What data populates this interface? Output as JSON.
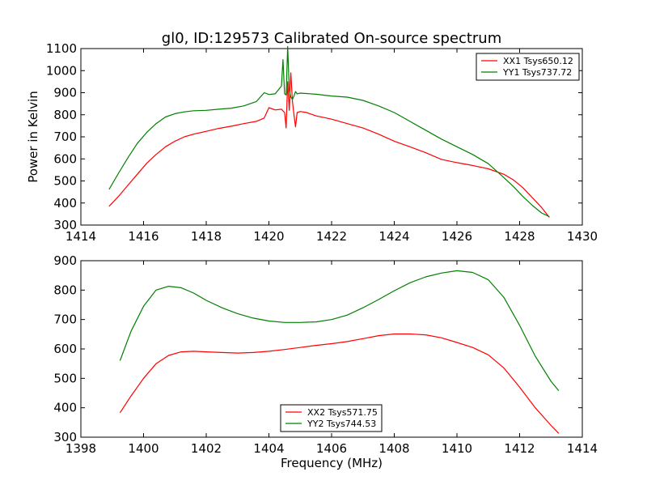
{
  "chart_data": [
    {
      "type": "line",
      "title": "gl0, ID:129573 Calibrated On-source spectrum",
      "xlabel": "",
      "ylabel": "Power in Kelvin",
      "xlim": [
        1414,
        1430
      ],
      "ylim": [
        300,
        1100
      ],
      "xticks": [
        1414,
        1416,
        1418,
        1420,
        1422,
        1424,
        1426,
        1428,
        1430
      ],
      "yticks": [
        300,
        400,
        500,
        600,
        700,
        800,
        900,
        1000,
        1100
      ],
      "grid": false,
      "legend_position": "top-right",
      "series": [
        {
          "name": "XX1 Tsys650.12",
          "color": "#ff0000",
          "x": [
            1414.9,
            1415.2,
            1415.5,
            1415.8,
            1416.1,
            1416.4,
            1416.7,
            1417.0,
            1417.3,
            1417.6,
            1418.0,
            1418.4,
            1418.8,
            1419.2,
            1419.6,
            1419.85,
            1420.0,
            1420.2,
            1420.4,
            1420.5,
            1420.55,
            1420.6,
            1420.65,
            1420.7,
            1420.75,
            1420.8,
            1420.85,
            1420.9,
            1421.0,
            1421.2,
            1421.5,
            1422.0,
            1422.5,
            1423.0,
            1423.5,
            1424.0,
            1424.5,
            1425.0,
            1425.5,
            1426.0,
            1426.5,
            1427.0,
            1427.5,
            1427.8,
            1428.1,
            1428.4,
            1428.7,
            1428.95
          ],
          "y": [
            385,
            430,
            480,
            530,
            580,
            620,
            655,
            680,
            700,
            712,
            725,
            738,
            748,
            760,
            770,
            785,
            832,
            822,
            825,
            810,
            740,
            950,
            820,
            990,
            860,
            800,
            745,
            810,
            815,
            810,
            795,
            780,
            760,
            740,
            712,
            680,
            655,
            628,
            598,
            583,
            570,
            555,
            530,
            505,
            470,
            425,
            380,
            335
          ]
        },
        {
          "name": "YY1 Tsys737.72",
          "color": "#008000",
          "x": [
            1414.9,
            1415.2,
            1415.5,
            1415.8,
            1416.1,
            1416.4,
            1416.7,
            1417.0,
            1417.3,
            1417.6,
            1418.0,
            1418.4,
            1418.8,
            1419.2,
            1419.6,
            1419.85,
            1420.0,
            1420.2,
            1420.4,
            1420.45,
            1420.5,
            1420.55,
            1420.6,
            1420.65,
            1420.7,
            1420.75,
            1420.8,
            1420.85,
            1420.9,
            1421.0,
            1421.5,
            1422.0,
            1422.5,
            1423.0,
            1423.5,
            1424.0,
            1424.5,
            1425.0,
            1425.5,
            1426.0,
            1426.5,
            1427.0,
            1427.5,
            1427.8,
            1428.1,
            1428.4,
            1428.7,
            1428.95
          ],
          "y": [
            462,
            535,
            605,
            670,
            720,
            760,
            790,
            805,
            813,
            818,
            820,
            825,
            830,
            840,
            860,
            900,
            892,
            895,
            930,
            1050,
            895,
            890,
            1110,
            910,
            880,
            870,
            885,
            905,
            895,
            898,
            893,
            885,
            880,
            865,
            840,
            810,
            770,
            730,
            690,
            655,
            620,
            578,
            515,
            475,
            430,
            390,
            355,
            338
          ]
        }
      ]
    },
    {
      "type": "line",
      "title": "",
      "xlabel": "Frequency (MHz)",
      "ylabel": "",
      "xlim": [
        1398,
        1414
      ],
      "ylim": [
        300,
        900
      ],
      "xticks": [
        1398,
        1400,
        1402,
        1404,
        1406,
        1408,
        1410,
        1412,
        1414
      ],
      "yticks": [
        300,
        400,
        500,
        600,
        700,
        800,
        900
      ],
      "grid": false,
      "legend_position": "bottom-center",
      "series": [
        {
          "name": "XX2 Tsys571.75",
          "color": "#ff0000",
          "x": [
            1399.25,
            1399.6,
            1400.0,
            1400.4,
            1400.8,
            1401.2,
            1401.6,
            1402.0,
            1402.5,
            1403.0,
            1403.5,
            1404.0,
            1404.5,
            1405.0,
            1405.5,
            1406.0,
            1406.5,
            1407.0,
            1407.5,
            1408.0,
            1408.5,
            1409.0,
            1409.5,
            1410.0,
            1410.5,
            1411.0,
            1411.5,
            1412.0,
            1412.5,
            1413.0,
            1413.25
          ],
          "y": [
            383,
            440,
            500,
            550,
            578,
            590,
            592,
            590,
            588,
            586,
            588,
            592,
            598,
            605,
            612,
            618,
            625,
            635,
            645,
            651,
            651,
            648,
            638,
            622,
            605,
            580,
            535,
            470,
            400,
            340,
            313
          ]
        },
        {
          "name": "YY2 Tsys744.53",
          "color": "#008000",
          "x": [
            1399.25,
            1399.6,
            1400.0,
            1400.4,
            1400.8,
            1401.2,
            1401.6,
            1402.0,
            1402.5,
            1403.0,
            1403.5,
            1404.0,
            1404.5,
            1405.0,
            1405.5,
            1406.0,
            1406.5,
            1407.0,
            1407.5,
            1408.0,
            1408.5,
            1409.0,
            1409.5,
            1410.0,
            1410.5,
            1411.0,
            1411.5,
            1412.0,
            1412.5,
            1413.0,
            1413.25
          ],
          "y": [
            560,
            660,
            745,
            800,
            813,
            808,
            790,
            765,
            740,
            720,
            705,
            695,
            690,
            690,
            692,
            700,
            715,
            740,
            768,
            798,
            825,
            845,
            858,
            866,
            860,
            835,
            775,
            680,
            575,
            490,
            458
          ]
        }
      ]
    }
  ]
}
